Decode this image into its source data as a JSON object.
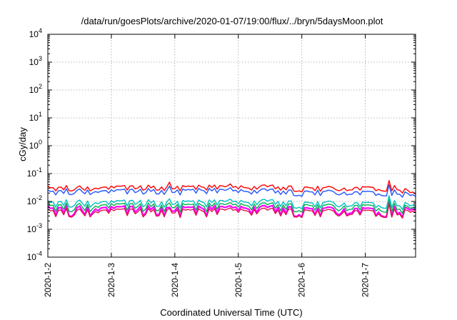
{
  "chart_data": {
    "type": "line",
    "title": "/data/run/goesPlots/archive/2020-01-07/19:00/flux/../bryn/5daysMoon.plot",
    "xlabel": "Coordinated Universal Time (UTC)",
    "ylabel": "cGy/day",
    "yscale": "log",
    "ylim": [
      0.0001,
      10000
    ],
    "yticks": [
      {
        "base": "10",
        "exp": "4"
      },
      {
        "base": "10",
        "exp": "3"
      },
      {
        "base": "10",
        "exp": "2"
      },
      {
        "base": "10",
        "exp": "1"
      },
      {
        "base": "10",
        "exp": "0"
      },
      {
        "base": "10",
        "exp": "-1"
      },
      {
        "base": "10",
        "exp": "-2"
      },
      {
        "base": "10",
        "exp": "-3"
      },
      {
        "base": "10",
        "exp": "-4"
      }
    ],
    "xlim": [
      "2020-01-02T00:00",
      "2020-01-07T19:00"
    ],
    "xticks": [
      "2020-1-2",
      "2020-1-3",
      "2020-1-4",
      "2020-1-5",
      "2020-1-6",
      "2020-1-7"
    ],
    "grid": true,
    "colors": [
      "#ff0000",
      "#2255ff",
      "#00c0c0",
      "#00b050",
      "#ff00ff",
      "#e01050"
    ],
    "series": [
      {
        "color": "#ff0000",
        "x": [
          "2020-01-02T00:00",
          "2020-01-02T12:00",
          "2020-01-03T00:00",
          "2020-01-03T12:00",
          "2020-01-04T00:00",
          "2020-01-04T12:00",
          "2020-01-05T00:00",
          "2020-01-05T12:00",
          "2020-01-06T00:00",
          "2020-01-06T12:00",
          "2020-01-07T00:00",
          "2020-01-07T12:00",
          "2020-01-07T19:00"
        ],
        "values": [
          0.03,
          0.032,
          0.03,
          0.033,
          0.031,
          0.034,
          0.03,
          0.033,
          0.028,
          0.03,
          0.029,
          0.031,
          0.017
        ]
      },
      {
        "color": "#2255ff",
        "x": [
          "2020-01-02T00:00",
          "2020-01-02T12:00",
          "2020-01-03T00:00",
          "2020-01-03T12:00",
          "2020-01-04T00:00",
          "2020-01-04T12:00",
          "2020-01-05T00:00",
          "2020-01-05T12:00",
          "2020-01-06T00:00",
          "2020-01-06T12:00",
          "2020-01-07T00:00",
          "2020-01-07T12:00",
          "2020-01-07T19:00"
        ],
        "values": [
          0.022,
          0.025,
          0.022,
          0.025,
          0.023,
          0.026,
          0.022,
          0.024,
          0.02,
          0.022,
          0.02,
          0.022,
          0.014
        ]
      },
      {
        "color": "#00c0c0",
        "x": [
          "2020-01-02T00:00",
          "2020-01-02T12:00",
          "2020-01-03T00:00",
          "2020-01-03T12:00",
          "2020-01-04T00:00",
          "2020-01-04T12:00",
          "2020-01-05T00:00",
          "2020-01-05T12:00",
          "2020-01-06T00:00",
          "2020-01-06T12:00",
          "2020-01-07T00:00",
          "2020-01-07T12:00",
          "2020-01-07T19:00"
        ],
        "values": [
          0.009,
          0.01,
          0.009,
          0.01,
          0.009,
          0.01,
          0.009,
          0.01,
          0.008,
          0.009,
          0.008,
          0.009,
          0.006
        ]
      },
      {
        "color": "#00b050",
        "x": [
          "2020-01-02T00:00",
          "2020-01-02T12:00",
          "2020-01-03T00:00",
          "2020-01-03T12:00",
          "2020-01-04T00:00",
          "2020-01-04T12:00",
          "2020-01-05T00:00",
          "2020-01-05T12:00",
          "2020-01-06T00:00",
          "2020-01-06T12:00",
          "2020-01-07T00:00",
          "2020-01-07T12:00",
          "2020-01-07T19:00"
        ],
        "values": [
          0.007,
          0.0075,
          0.007,
          0.0075,
          0.007,
          0.0075,
          0.007,
          0.0075,
          0.0065,
          0.007,
          0.0065,
          0.007,
          0.005
        ]
      },
      {
        "color": "#ff00ff",
        "x": [
          "2020-01-02T00:00",
          "2020-01-02T12:00",
          "2020-01-03T00:00",
          "2020-01-03T12:00",
          "2020-01-04T00:00",
          "2020-01-04T12:00",
          "2020-01-05T00:00",
          "2020-01-05T12:00",
          "2020-01-06T00:00",
          "2020-01-06T12:00",
          "2020-01-07T00:00",
          "2020-01-07T12:00",
          "2020-01-07T19:00"
        ],
        "values": [
          0.0055,
          0.006,
          0.0055,
          0.006,
          0.0055,
          0.006,
          0.0055,
          0.006,
          0.005,
          0.0055,
          0.005,
          0.0055,
          0.0045
        ]
      },
      {
        "color": "#e01050",
        "x": [
          "2020-01-02T00:00",
          "2020-01-02T12:00",
          "2020-01-03T00:00",
          "2020-01-03T12:00",
          "2020-01-04T00:00",
          "2020-01-04T12:00",
          "2020-01-05T00:00",
          "2020-01-05T12:00",
          "2020-01-06T00:00",
          "2020-01-06T12:00",
          "2020-01-07T00:00",
          "2020-01-07T12:00",
          "2020-01-07T19:00"
        ],
        "values": [
          0.0045,
          0.0048,
          0.0045,
          0.0048,
          0.0045,
          0.0048,
          0.0045,
          0.0048,
          0.0042,
          0.0045,
          0.0042,
          0.0045,
          0.0038
        ]
      }
    ]
  }
}
